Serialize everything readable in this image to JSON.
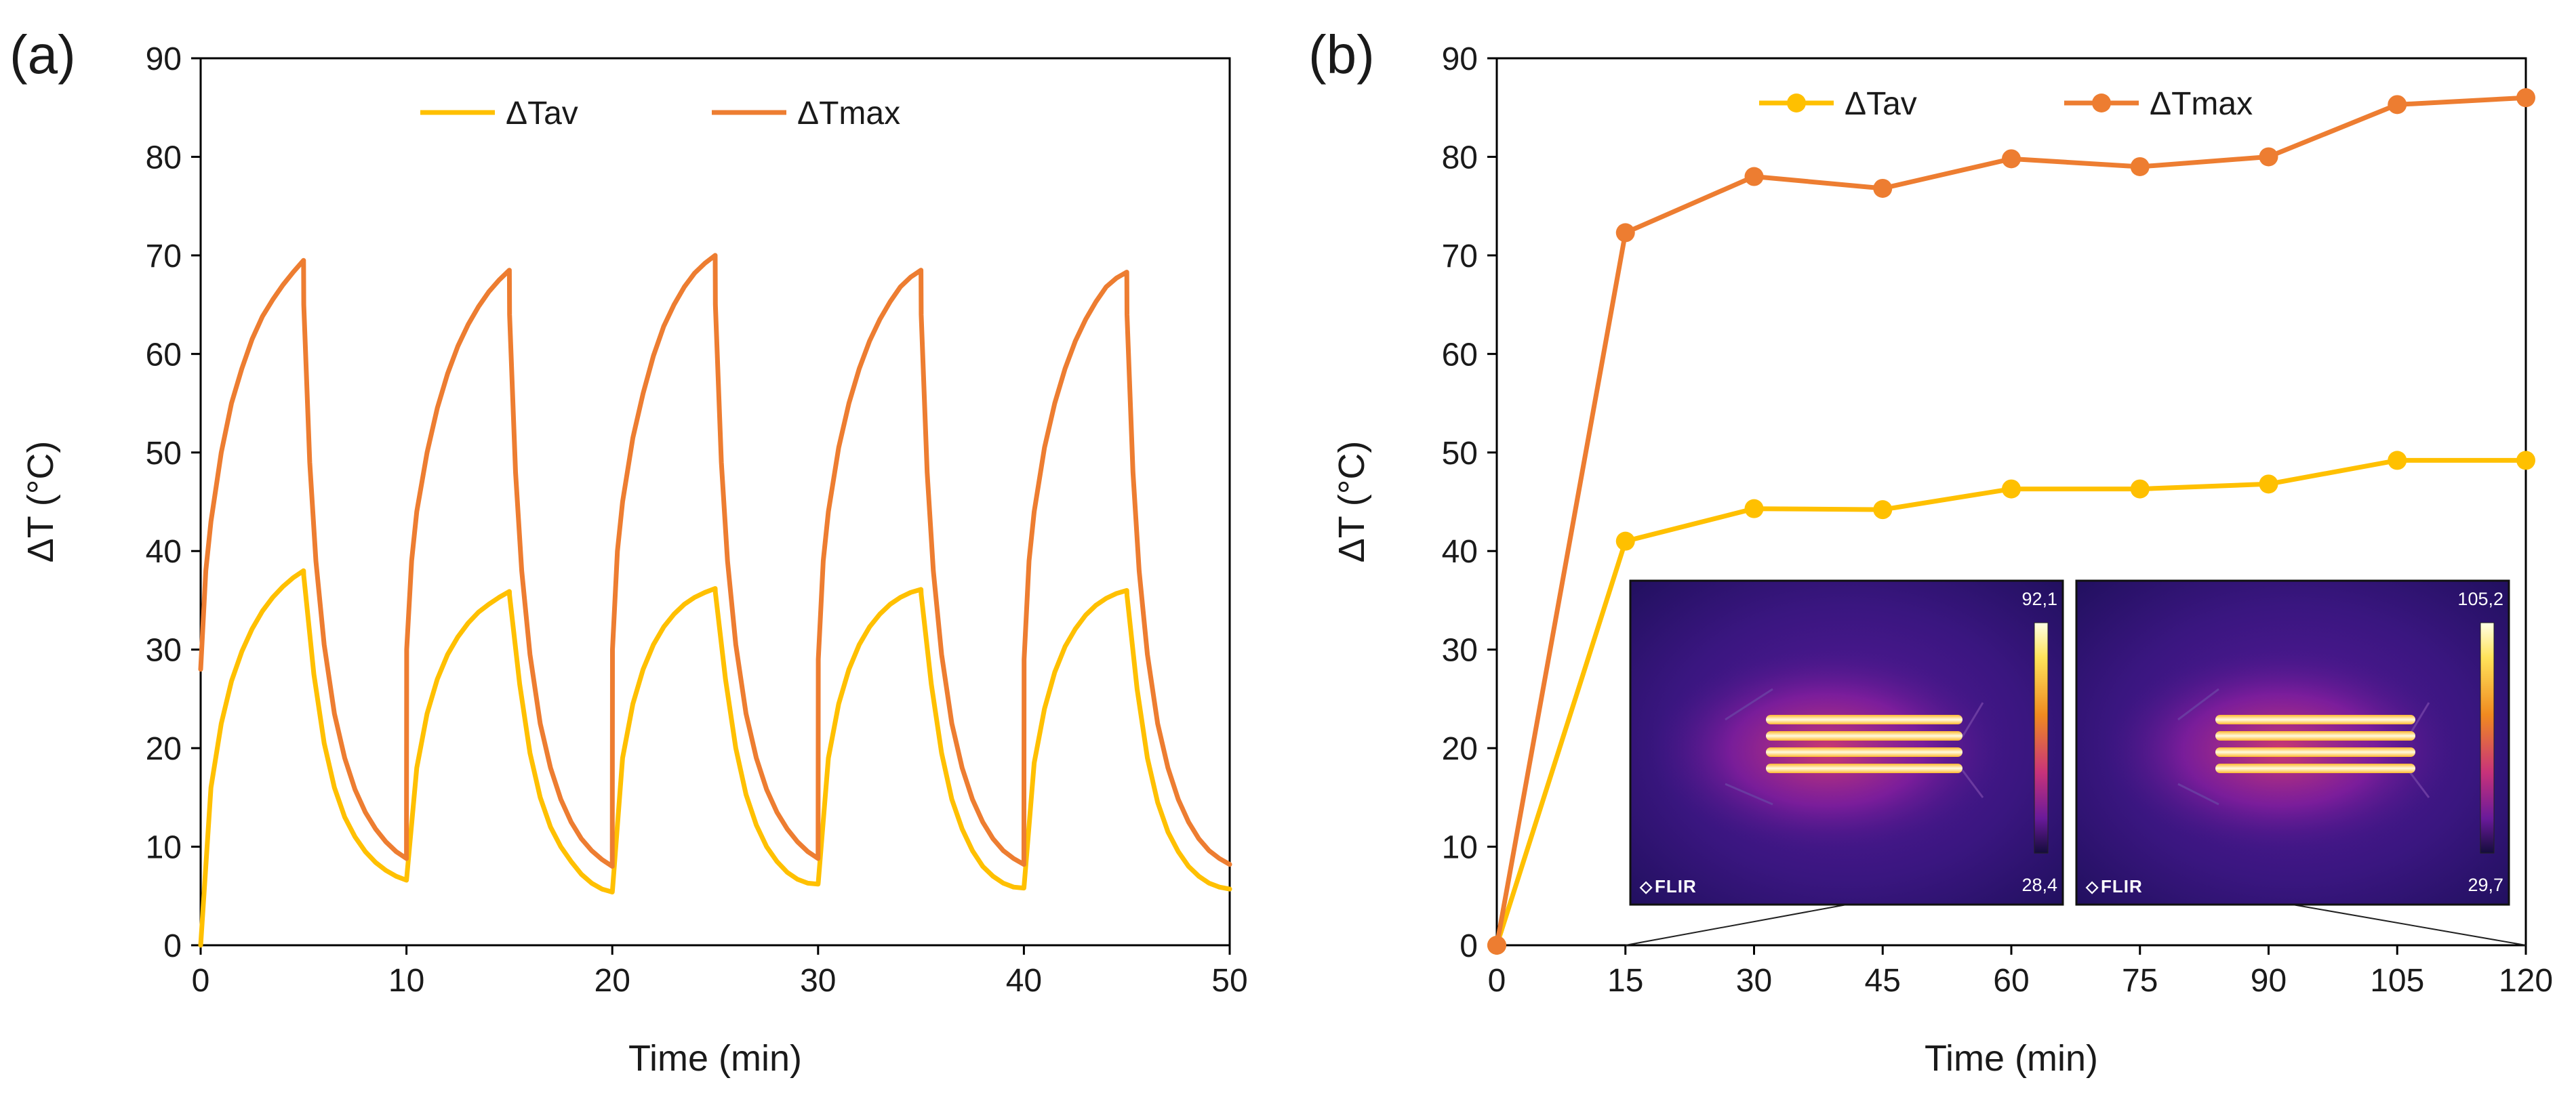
{
  "figure": {
    "panels": [
      {
        "id": "a",
        "label": "(a)"
      },
      {
        "id": "b",
        "label": "(b)"
      }
    ]
  },
  "colors": {
    "tav": "#FFC000",
    "tmax": "#ED7D31",
    "axis": "#000000"
  },
  "chart_data": [
    {
      "id": "a",
      "type": "line",
      "label": "(a)",
      "xlabel": "Time (min)",
      "ylabel": "ΔT (°C)",
      "xlim": [
        0,
        50
      ],
      "ylim": [
        0,
        90
      ],
      "xticks": [
        0,
        10,
        20,
        30,
        40,
        50
      ],
      "yticks": [
        0,
        10,
        20,
        30,
        40,
        50,
        60,
        70,
        80,
        90
      ],
      "legend_position": "top-center",
      "markers": false,
      "series": [
        {
          "name": "ΔTav",
          "color": "#FFC000",
          "x": [
            0,
            0.5,
            1,
            1.5,
            2,
            2.5,
            3,
            3.5,
            4,
            4.5,
            5,
            5.01,
            5.5,
            6,
            6.5,
            7,
            7.5,
            8,
            8.5,
            9,
            9.5,
            10,
            10.01,
            10.5,
            11,
            11.5,
            12,
            12.5,
            13,
            13.5,
            14,
            14.5,
            15,
            15.01,
            15.5,
            16,
            16.5,
            17,
            17.5,
            18,
            18.5,
            19,
            19.5,
            20,
            20.01,
            20.5,
            21,
            21.5,
            22,
            22.5,
            23,
            23.5,
            24,
            24.5,
            25,
            25.01,
            25.5,
            26,
            26.5,
            27,
            27.5,
            28,
            28.5,
            29,
            29.5,
            30,
            30.01,
            30.5,
            31,
            31.5,
            32,
            32.5,
            33,
            33.5,
            34,
            34.5,
            35,
            35.01,
            35.5,
            36,
            36.5,
            37,
            37.5,
            38,
            38.5,
            39,
            39.5,
            40,
            40.01,
            40.5,
            41,
            41.5,
            42,
            42.5,
            43,
            43.5,
            44,
            44.5,
            45,
            45.01,
            45.5,
            46,
            46.5,
            47,
            47.5,
            48,
            48.5,
            49,
            49.5,
            50
          ],
          "y": [
            0,
            16,
            22.5,
            26.8,
            29.8,
            32.1,
            33.9,
            35.3,
            36.4,
            37.3,
            38.0,
            37.5,
            27.5,
            20.5,
            16.0,
            13.0,
            11.0,
            9.5,
            8.4,
            7.6,
            7.0,
            6.6,
            6.8,
            18,
            23.5,
            27.0,
            29.5,
            31.3,
            32.7,
            33.8,
            34.6,
            35.3,
            35.9,
            35.5,
            26.5,
            19.5,
            15.0,
            12.0,
            10.0,
            8.5,
            7.2,
            6.3,
            5.7,
            5.4,
            5.6,
            19,
            24.5,
            28.0,
            30.5,
            32.3,
            33.6,
            34.6,
            35.3,
            35.8,
            36.2,
            35.8,
            27.0,
            20.0,
            15.3,
            12.2,
            10.0,
            8.5,
            7.4,
            6.7,
            6.3,
            6.2,
            6.4,
            19,
            24.5,
            28.0,
            30.5,
            32.3,
            33.6,
            34.6,
            35.3,
            35.8,
            36.1,
            35.6,
            26.5,
            19.5,
            14.8,
            11.8,
            9.6,
            8.0,
            7.0,
            6.3,
            5.9,
            5.8,
            6.0,
            18.5,
            24.0,
            27.7,
            30.3,
            32.1,
            33.5,
            34.5,
            35.2,
            35.7,
            36.0,
            35.5,
            26.0,
            19.0,
            14.5,
            11.5,
            9.5,
            8.0,
            7.0,
            6.3,
            5.9,
            5.7
          ]
        },
        {
          "name": "ΔTmax",
          "color": "#ED7D31",
          "x": [
            0,
            0.25,
            0.5,
            1,
            1.5,
            2,
            2.5,
            3,
            3.5,
            4,
            4.5,
            5,
            5.01,
            5.3,
            5.6,
            6,
            6.5,
            7,
            7.5,
            8,
            8.5,
            9,
            9.5,
            10,
            10.01,
            10.25,
            10.5,
            11,
            11.5,
            12,
            12.5,
            13,
            13.5,
            14,
            14.5,
            15,
            15.01,
            15.3,
            15.6,
            16,
            16.5,
            17,
            17.5,
            18,
            18.5,
            19,
            19.5,
            20,
            20.01,
            20.25,
            20.5,
            21,
            21.5,
            22,
            22.5,
            23,
            23.5,
            24,
            24.5,
            25,
            25.01,
            25.3,
            25.6,
            26,
            26.5,
            27,
            27.5,
            28,
            28.5,
            29,
            29.5,
            30,
            30.01,
            30.25,
            30.5,
            31,
            31.5,
            32,
            32.5,
            33,
            33.5,
            34,
            34.5,
            35,
            35.01,
            35.3,
            35.6,
            36,
            36.5,
            37,
            37.5,
            38,
            38.5,
            39,
            39.5,
            40,
            40.01,
            40.25,
            40.5,
            41,
            41.5,
            42,
            42.5,
            43,
            43.5,
            44,
            44.5,
            45,
            45.01,
            45.3,
            45.6,
            46,
            46.5,
            47,
            47.5,
            48,
            48.5,
            49,
            49.5,
            50
          ],
          "y": [
            28,
            38,
            43,
            50,
            55,
            58.5,
            61.5,
            63.8,
            65.5,
            67.0,
            68.3,
            69.5,
            65,
            49,
            39,
            30.5,
            23.5,
            19.0,
            15.8,
            13.5,
            11.8,
            10.5,
            9.5,
            8.8,
            30,
            39,
            44,
            50,
            54.5,
            58.0,
            60.8,
            63.0,
            64.8,
            66.3,
            67.5,
            68.5,
            64,
            48,
            38,
            29.5,
            22.5,
            18.0,
            14.8,
            12.5,
            10.8,
            9.6,
            8.7,
            8.0,
            30,
            40,
            45,
            51.5,
            56.0,
            59.8,
            62.8,
            65.0,
            66.8,
            68.2,
            69.2,
            70.0,
            65,
            49,
            39,
            30.5,
            23.5,
            19.0,
            15.8,
            13.5,
            11.8,
            10.5,
            9.5,
            8.8,
            29,
            39,
            44,
            50.5,
            55.0,
            58.5,
            61.3,
            63.5,
            65.3,
            66.8,
            67.8,
            68.5,
            64,
            48,
            38,
            29.5,
            22.5,
            18.0,
            14.8,
            12.5,
            10.8,
            9.6,
            8.8,
            8.2,
            29,
            39,
            44,
            50.5,
            55.0,
            58.5,
            61.3,
            63.5,
            65.3,
            66.8,
            67.7,
            68.3,
            64,
            48,
            38,
            29.5,
            22.5,
            18.0,
            14.8,
            12.5,
            10.8,
            9.6,
            8.8,
            8.2
          ]
        }
      ]
    },
    {
      "id": "b",
      "type": "line",
      "label": "(b)",
      "xlabel": "Time (min)",
      "ylabel": "ΔT (°C)",
      "xlim": [
        0,
        120
      ],
      "ylim": [
        0,
        90
      ],
      "xticks": [
        0,
        15,
        30,
        45,
        60,
        75,
        90,
        105,
        120
      ],
      "yticks": [
        0,
        10,
        20,
        30,
        40,
        50,
        60,
        70,
        80,
        90
      ],
      "legend_position": "top-center",
      "markers": true,
      "series": [
        {
          "name": "ΔTav",
          "color": "#FFC000",
          "x": [
            0,
            15,
            30,
            45,
            60,
            75,
            90,
            105,
            120
          ],
          "y": [
            0,
            41.0,
            44.3,
            44.2,
            46.3,
            46.3,
            46.8,
            49.2,
            49.2
          ]
        },
        {
          "name": "ΔTmax",
          "color": "#ED7D31",
          "x": [
            0,
            15,
            30,
            45,
            60,
            75,
            90,
            105,
            120
          ],
          "y": [
            0,
            72.3,
            78.0,
            76.8,
            79.8,
            79.0,
            80.0,
            85.3,
            86.0
          ]
        }
      ],
      "insets": [
        {
          "brand": "FLIR",
          "scale_max": "92,1",
          "scale_min": "28,4",
          "linked_x": 15
        },
        {
          "brand": "FLIR",
          "scale_max": "105,2",
          "scale_min": "29,7",
          "linked_x": 120
        }
      ]
    }
  ]
}
